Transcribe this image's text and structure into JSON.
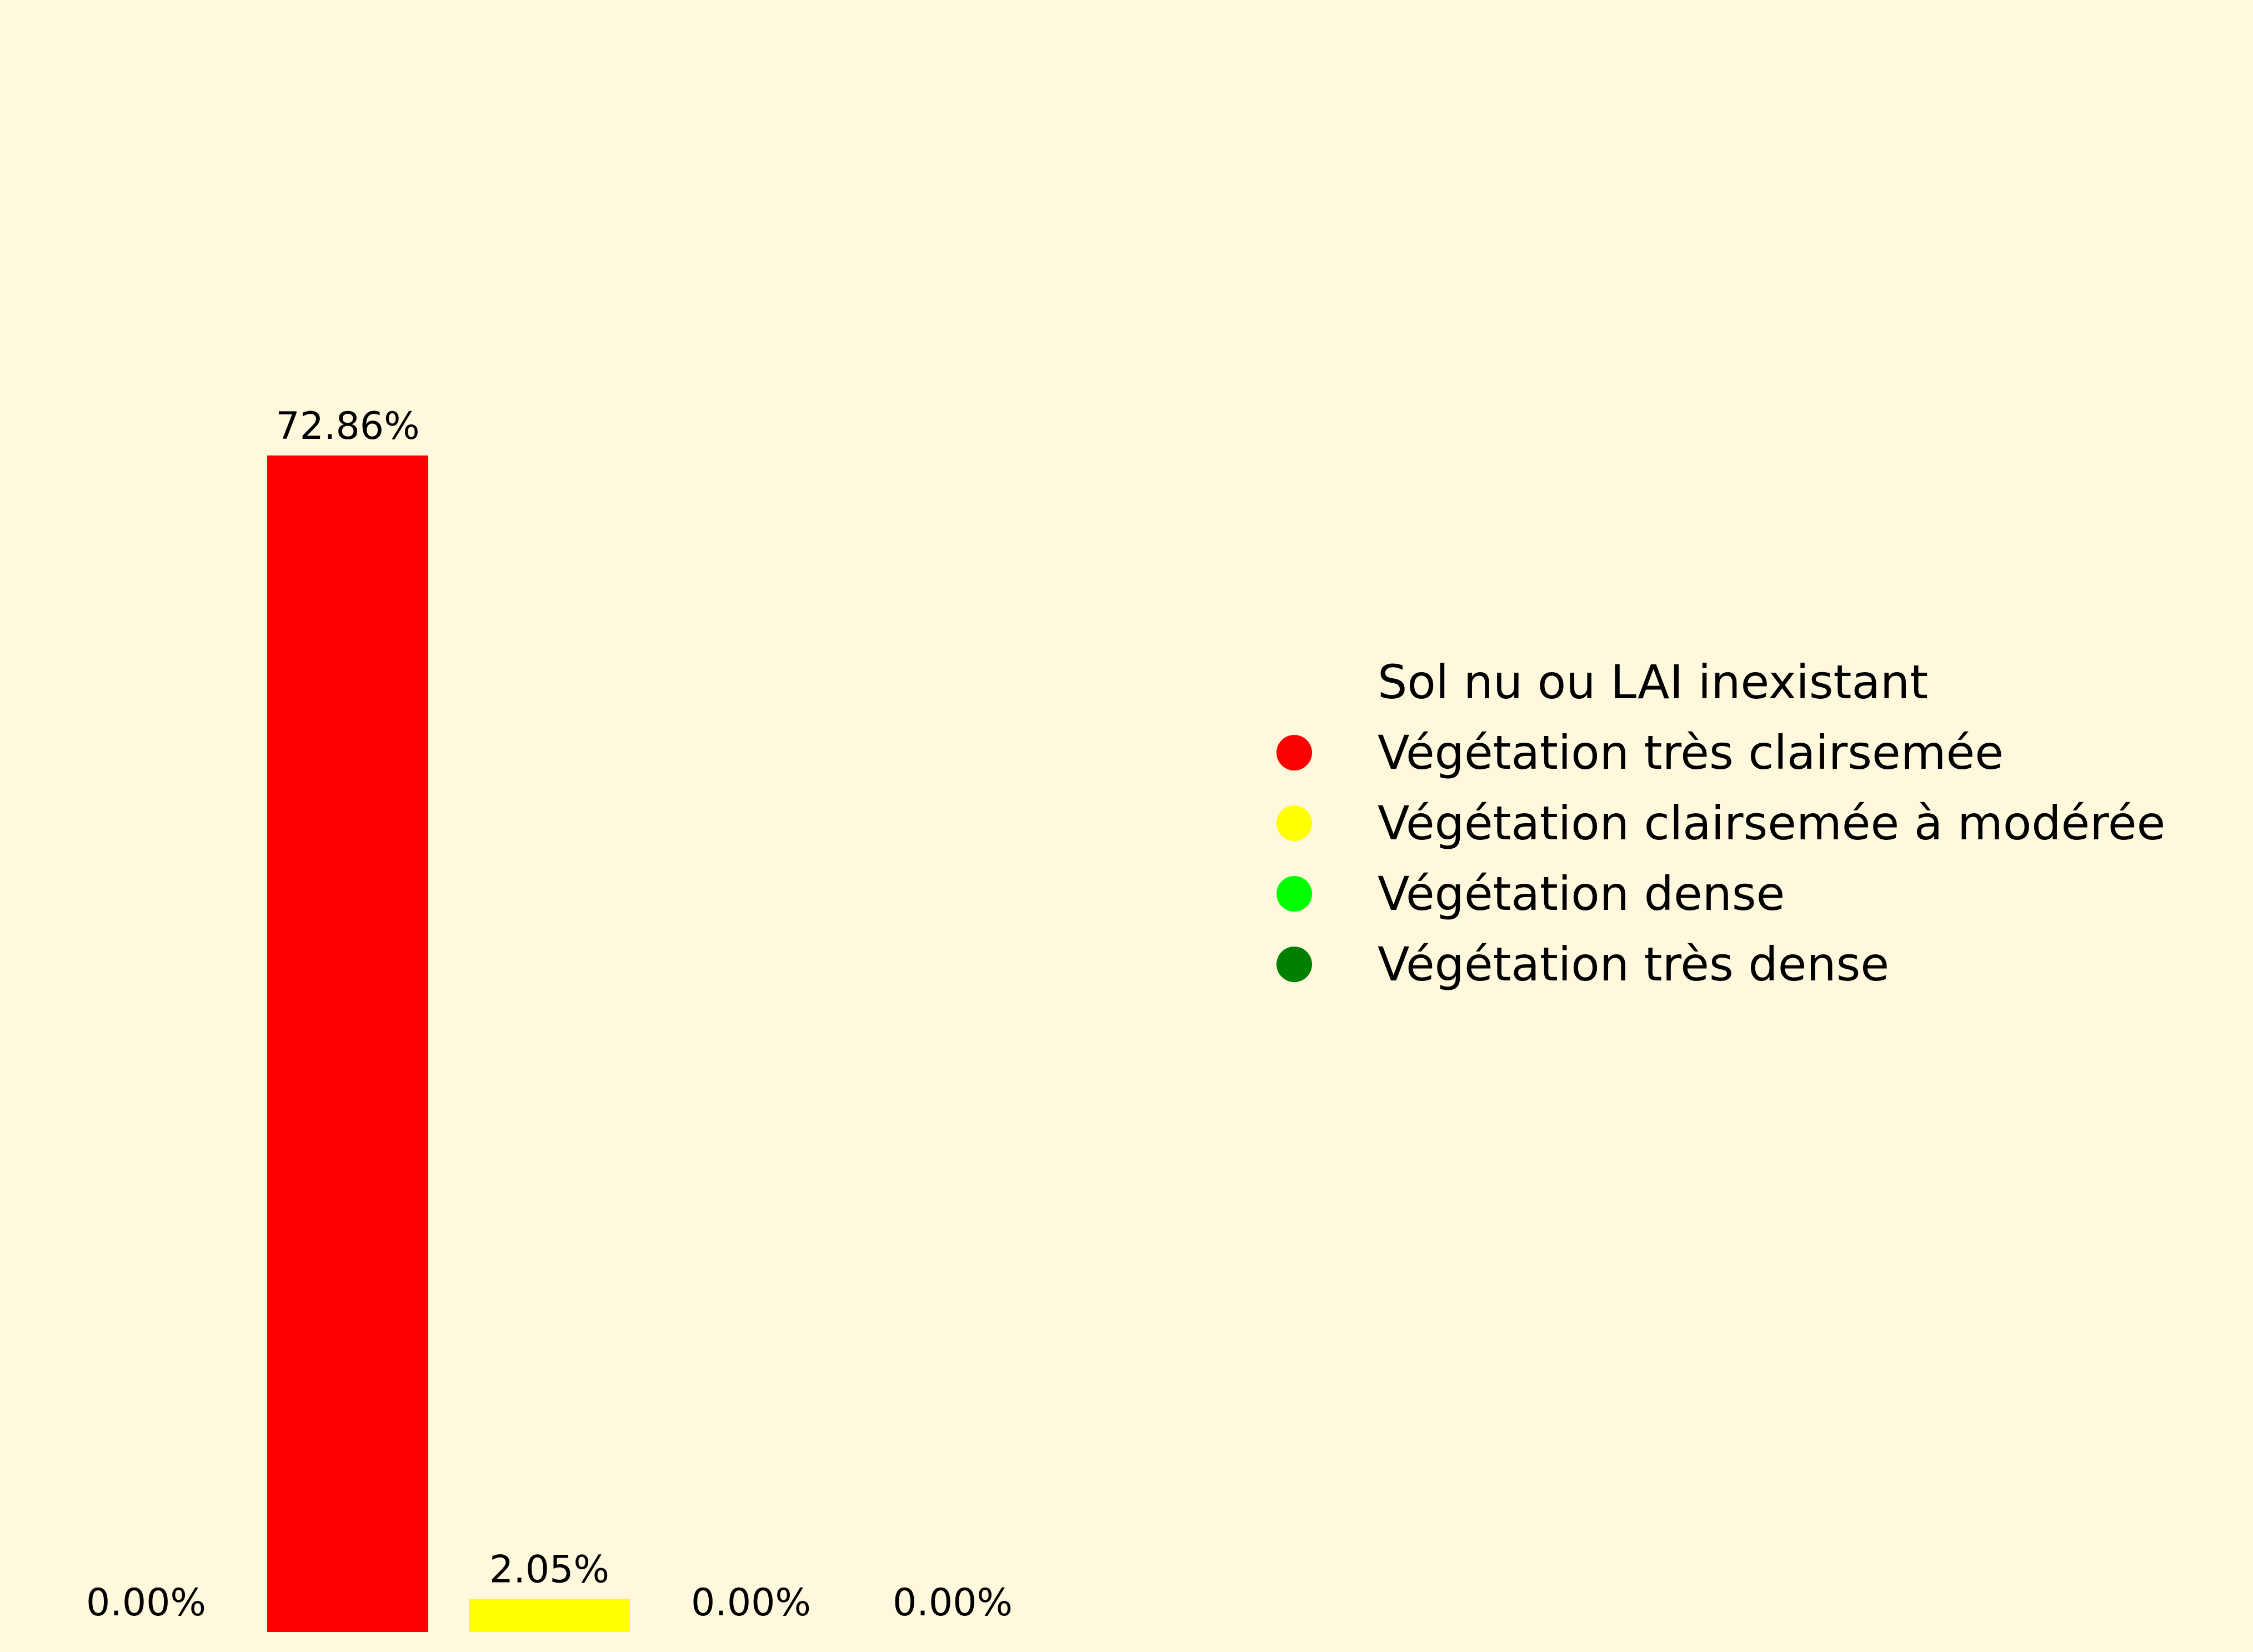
{
  "background_color": "#FFF8DC",
  "chart_data": {
    "type": "bar",
    "title": "",
    "xlabel": "",
    "ylabel": "",
    "ylim": [
      0,
      80
    ],
    "grid": false,
    "axes_visible": false,
    "legend_position": "center-right",
    "categories": [
      "Sol nu ou LAI inexistant",
      "Végétation très clairsemée",
      "Végétation clairsemée à modérée",
      "Végétation dense",
      "Végétation très dense"
    ],
    "values": [
      0.0,
      72.86,
      2.05,
      0.0,
      0.0
    ],
    "value_labels": [
      "0.00%",
      "72.86%",
      "2.05%",
      "0.00%",
      "0.00%"
    ],
    "colors": [
      "#FFF8DC",
      "#FF0000",
      "#FFFF00",
      "#00FF00",
      "#008000"
    ],
    "legend": [
      {
        "label": "Sol nu ou LAI inexistant",
        "color": "#FFF8DC"
      },
      {
        "label": "Végétation très clairsemée",
        "color": "#FF0000"
      },
      {
        "label": "Végétation clairsemée à modérée",
        "color": "#FFFF00"
      },
      {
        "label": "Végétation dense",
        "color": "#00FF00"
      },
      {
        "label": "Végétation très dense",
        "color": "#008000"
      }
    ]
  }
}
